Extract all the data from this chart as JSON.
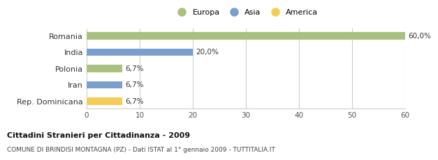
{
  "categories": [
    "Romania",
    "India",
    "Polonia",
    "Iran",
    "Rep. Dominicana"
  ],
  "values": [
    60.0,
    20.0,
    6.7,
    6.7,
    6.7
  ],
  "colors": [
    "#a8c080",
    "#7b9fcc",
    "#a8c080",
    "#7b9fcc",
    "#f5cc55"
  ],
  "labels": [
    "60,0%",
    "20,0%",
    "6,7%",
    "6,7%",
    "6,7%"
  ],
  "legend": [
    {
      "label": "Europa",
      "color": "#a8c080"
    },
    {
      "label": "Asia",
      "color": "#7b9fcc"
    },
    {
      "label": "America",
      "color": "#f5cc55"
    }
  ],
  "xlim": [
    0,
    60
  ],
  "xticks": [
    0,
    10,
    20,
    30,
    40,
    50,
    60
  ],
  "title_bold": "Cittadini Stranieri per Cittadinanza - 2009",
  "subtitle": "COMUNE DI BRINDISI MONTAGNA (PZ) - Dati ISTAT al 1° gennaio 2009 - TUTTITALIA.IT",
  "bg_color": "#ffffff",
  "grid_color": "#cccccc",
  "bar_height": 0.45
}
